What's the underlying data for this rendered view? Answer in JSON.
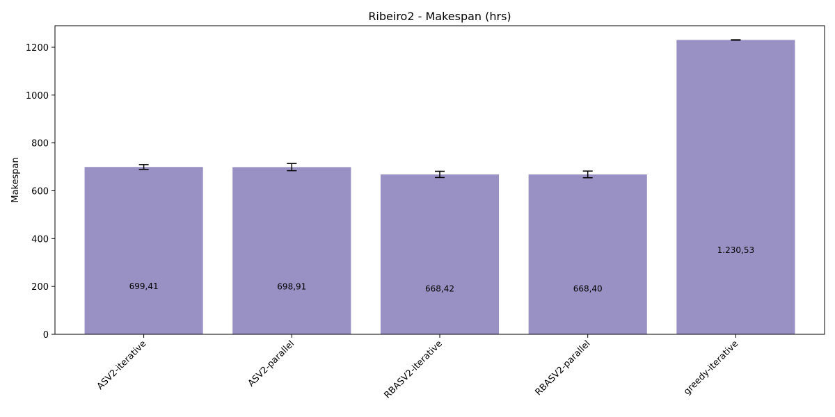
{
  "chart_data": {
    "type": "bar",
    "title": "Ribeiro2 - Makespan (hrs)",
    "xlabel": "",
    "ylabel": "Makespan",
    "ylim": [
      0,
      1290
    ],
    "yticks": [
      0,
      200,
      400,
      600,
      800,
      1000,
      1200
    ],
    "grid": false,
    "bar_color": "#9990c4",
    "categories": [
      "ASV2-iterative",
      "ASV2-parallel",
      "RBASV2-iterative",
      "RBASV2-parallel",
      "greedy-iterative"
    ],
    "values": [
      699.41,
      698.91,
      668.42,
      668.4,
      1230.53
    ],
    "errors": [
      10,
      15,
      13,
      14,
      1
    ],
    "value_labels": [
      "699,41",
      "698,91",
      "668,42",
      "668,40",
      "1.230,53"
    ]
  }
}
